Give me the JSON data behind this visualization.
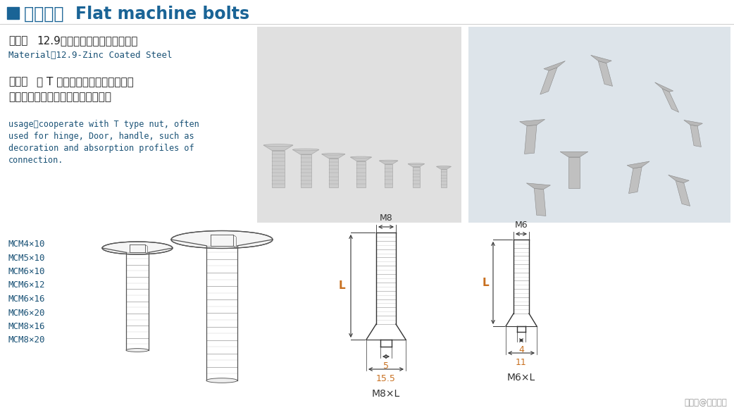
{
  "bg_color": "#ffffff",
  "title_square_color": "#1a6496",
  "title_zh": "平机螺栓",
  "title_en": "Flat machine bolts",
  "title_color": "#1a6496",
  "title_fontsize": 17,
  "material_label": "材料：",
  "material_zh": "12.9级高强度碳钔（表面镀镖）",
  "material_en": "Material：12.9-Zinc Coated Steel",
  "usage_label": "用途：",
  "usage_zh_1": "与 T 型螺母配合，常用于合页、",
  "usage_zh_2": "门吸、手柄等装饰件与型材的连接。",
  "usage_en_lines": [
    "usage：cooperate with T type nut, often",
    "used for hinge, Door, handle, such as",
    "decoration and absorption profiles of",
    "connection."
  ],
  "text_dark": "#222222",
  "text_blue": "#1a5276",
  "label_bold_color": "#222222",
  "model_list": [
    "MCM4×10",
    "MCM5×10",
    "MCM6×10",
    "MCM6×12",
    "MCM6×16",
    "MCM6×20",
    "MCM8×16",
    "MCM8×20"
  ],
  "model_color": "#1a5276",
  "dim_color": "#333333",
  "dim_label_color": "#c87020",
  "watermark": "搜狐号@美城铝业",
  "watermark_color": "#999999",
  "photo1_color": "#d8d8d8",
  "photo2_color": "#d0d8e0"
}
